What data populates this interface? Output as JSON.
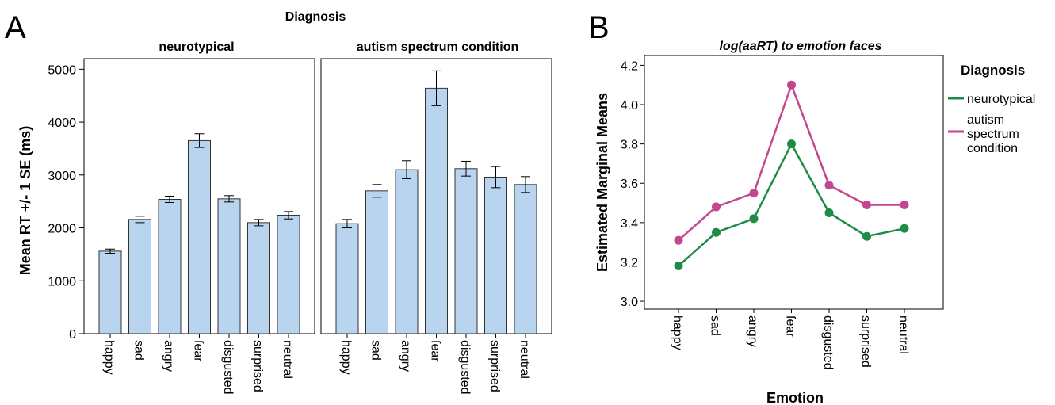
{
  "panel_a": {
    "letter": "A",
    "group_title": "Diagnosis",
    "ylabel": "Mean RT +/- 1 SE (ms)",
    "yticks": [
      "0",
      "1000",
      "2000",
      "3000",
      "4000",
      "5000"
    ]
  },
  "panel_b": {
    "letter": "B",
    "title": "log(aaRT) to emotion faces",
    "ylabel": "Estimated Marginal Means",
    "xlabel": "Emotion",
    "yticks": [
      "3.0",
      "3.2",
      "3.4",
      "3.6",
      "3.8",
      "4.0",
      "4.2"
    ],
    "legend_title": "Diagnosis",
    "legend_items": [
      {
        "label": "neurotypical"
      },
      {
        "label_lines": [
          "autism",
          "spectrum",
          "condition"
        ]
      }
    ]
  },
  "chart_data": [
    {
      "type": "bar",
      "title": "Diagnosis",
      "ylabel": "Mean RT +/- 1 SE (ms)",
      "ylim": [
        0,
        5200
      ],
      "bar_color": "#b8d4ef",
      "categories": [
        "happy",
        "sad",
        "angry",
        "fear",
        "disgusted",
        "surprised",
        "neutral"
      ],
      "facets": [
        {
          "name": "neurotypical",
          "values": [
            1560,
            2160,
            2540,
            3650,
            2550,
            2100,
            2240
          ],
          "errors": [
            40,
            60,
            60,
            130,
            60,
            60,
            70
          ]
        },
        {
          "name": "autism spectrum condition",
          "values": [
            2080,
            2700,
            3100,
            4640,
            3120,
            2960,
            2820
          ],
          "errors": [
            80,
            120,
            170,
            330,
            140,
            200,
            150
          ]
        }
      ]
    },
    {
      "type": "line",
      "title": "log(aaRT) to emotion faces",
      "xlabel": "Emotion",
      "ylabel": "Estimated Marginal Means",
      "ylim": [
        2.96,
        4.25
      ],
      "categories": [
        "happy",
        "sad",
        "angry",
        "fear",
        "disgusted",
        "surprised",
        "neutral"
      ],
      "legend": "right",
      "series": [
        {
          "name": "neurotypical",
          "color": "#1f8c46",
          "values": [
            3.18,
            3.35,
            3.42,
            3.8,
            3.45,
            3.33,
            3.37
          ]
        },
        {
          "name": "autism spectrum condition",
          "color": "#c2478f",
          "values": [
            3.31,
            3.48,
            3.55,
            4.1,
            3.59,
            3.49,
            3.49
          ]
        }
      ]
    }
  ]
}
